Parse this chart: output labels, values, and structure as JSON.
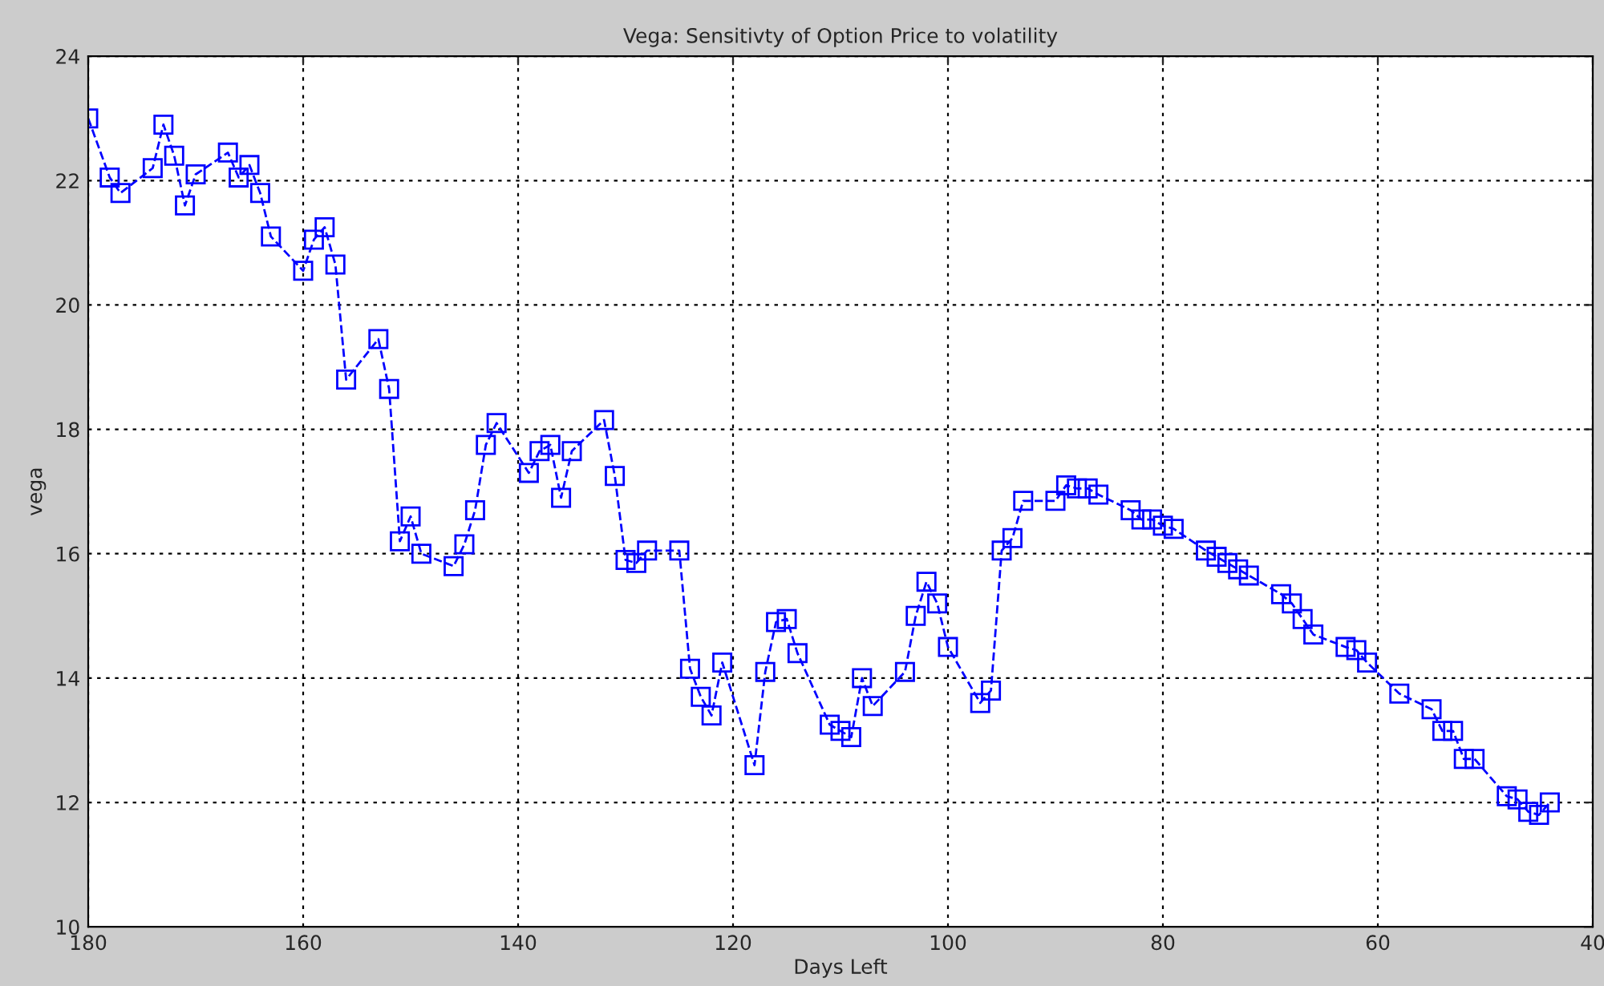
{
  "chart_data": {
    "type": "line",
    "title": "Vega: Sensitivty of Option Price to volatility",
    "xlabel": "Days Left",
    "ylabel": "vega",
    "xlim": [
      180,
      40
    ],
    "xticks": [
      180,
      160,
      140,
      120,
      100,
      80,
      60,
      40
    ],
    "ylim": [
      10,
      24
    ],
    "yticks": [
      10,
      12,
      14,
      16,
      18,
      20,
      22,
      24
    ],
    "grid": true,
    "marker": "square",
    "line_style": "dashed",
    "series": [
      {
        "color": "#0000ff",
        "x": [
          180,
          178,
          177,
          174,
          173,
          172,
          171,
          170,
          167,
          166,
          165,
          164,
          163,
          160,
          159,
          158,
          157,
          156,
          153,
          152,
          151,
          150,
          149,
          146,
          145,
          144,
          143,
          142,
          139,
          138,
          137,
          136,
          135,
          132,
          131,
          130,
          129,
          128,
          125,
          124,
          123,
          122,
          121,
          118,
          117,
          116,
          115,
          114,
          111,
          110,
          109,
          108,
          107,
          104,
          103,
          102,
          101,
          100,
          97,
          96,
          95,
          94,
          93,
          90,
          89,
          88,
          87,
          86,
          83,
          82,
          81,
          80,
          79,
          76,
          75,
          74,
          73,
          72,
          69,
          68,
          67,
          66,
          63,
          62,
          61,
          58,
          55,
          54,
          53,
          52,
          51,
          48,
          47,
          46,
          45,
          44
        ],
        "values": [
          23.0,
          22.05,
          21.8,
          22.2,
          22.9,
          22.4,
          21.6,
          22.1,
          22.45,
          22.05,
          22.25,
          21.8,
          21.1,
          20.55,
          21.05,
          21.25,
          20.65,
          18.8,
          19.45,
          18.65,
          16.2,
          16.6,
          16.0,
          15.8,
          16.15,
          16.7,
          17.75,
          18.1,
          17.3,
          17.65,
          17.75,
          16.9,
          17.65,
          18.15,
          17.25,
          15.9,
          15.85,
          16.05,
          16.05,
          14.15,
          13.7,
          13.4,
          14.25,
          12.6,
          14.1,
          14.9,
          14.95,
          14.4,
          13.25,
          13.15,
          13.05,
          14.0,
          13.55,
          14.1,
          15.0,
          15.55,
          15.2,
          14.5,
          13.6,
          13.8,
          16.05,
          16.25,
          16.85,
          16.85,
          17.1,
          17.05,
          17.05,
          16.95,
          16.7,
          16.55,
          16.55,
          16.45,
          16.4,
          16.05,
          15.95,
          15.85,
          15.75,
          15.65,
          15.35,
          15.2,
          14.95,
          14.7,
          14.5,
          14.45,
          14.25,
          13.75,
          13.5,
          13.15,
          13.15,
          12.7,
          12.7,
          12.1,
          12.05,
          11.85,
          11.8,
          12.0
        ]
      }
    ]
  }
}
